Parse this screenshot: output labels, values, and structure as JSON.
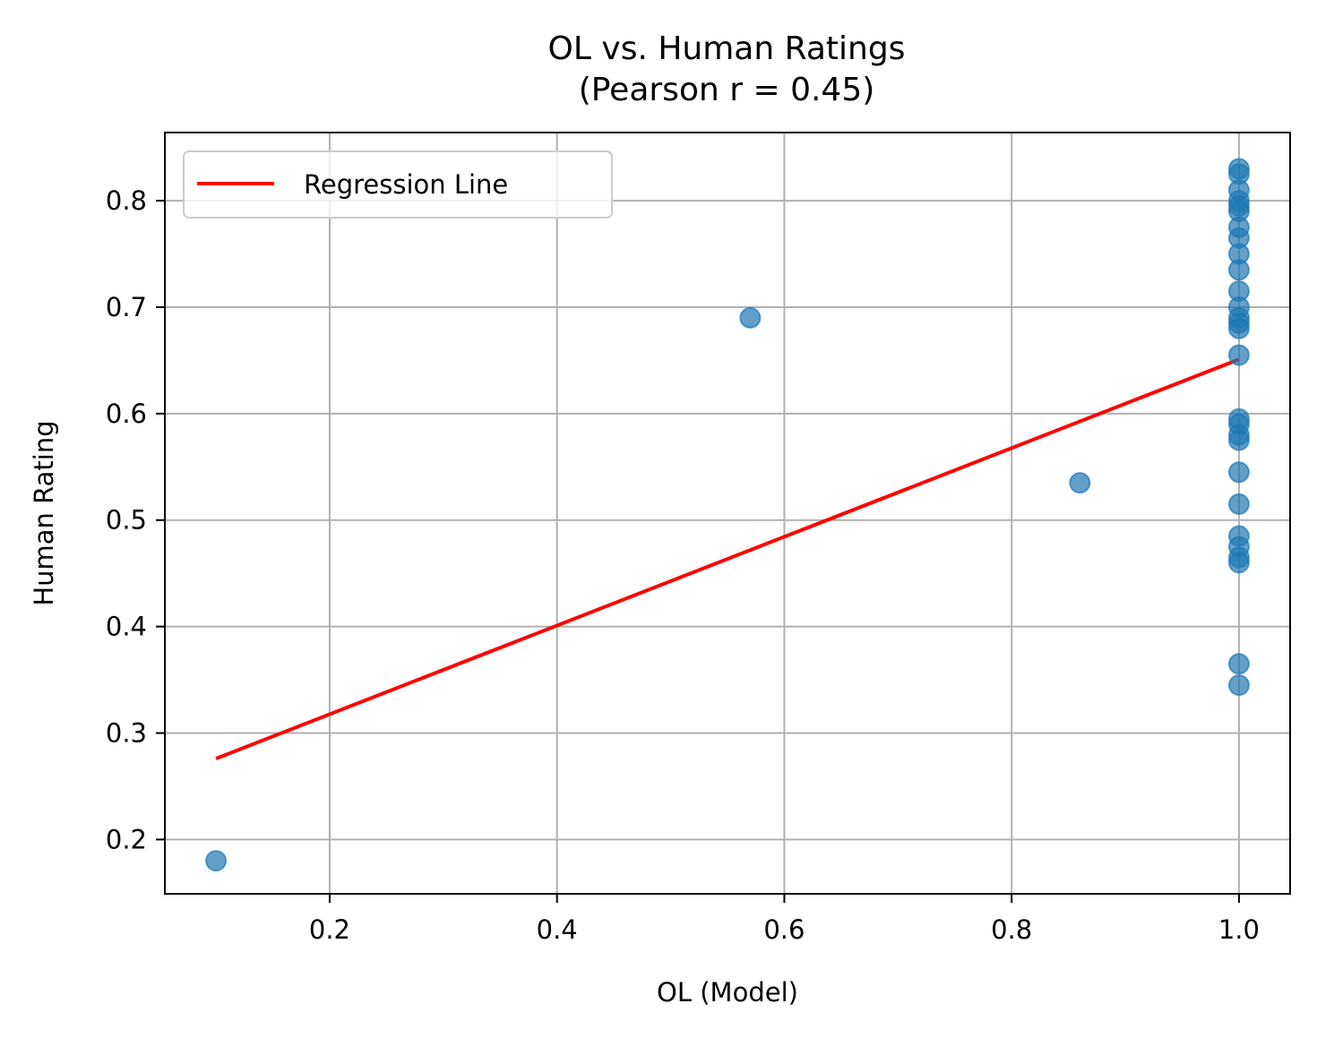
{
  "chart_data": {
    "type": "scatter",
    "title": "OL vs. Human Ratings",
    "subtitle": "(Pearson r = 0.45)",
    "xlabel": "OL (Model)",
    "ylabel": "Human Rating",
    "xlim": [
      0.055,
      1.045
    ],
    "ylim": [
      0.149,
      0.864
    ],
    "xticks": [
      0.2,
      0.4,
      0.6,
      0.8,
      1.0
    ],
    "xtick_labels": [
      "0.2",
      "0.4",
      "0.6",
      "0.8",
      "1.0"
    ],
    "yticks": [
      0.2,
      0.3,
      0.4,
      0.5,
      0.6,
      0.7,
      0.8
    ],
    "ytick_labels": [
      "0.2",
      "0.3",
      "0.4",
      "0.5",
      "0.6",
      "0.7",
      "0.8"
    ],
    "grid": true,
    "legend": {
      "placement": "top-left",
      "entries": [
        "Regression Line"
      ]
    },
    "series": [
      {
        "kind": "scatter",
        "color": "#1f77b4",
        "opacity": 0.7,
        "points": [
          [
            0.1,
            0.18
          ],
          [
            0.57,
            0.69
          ],
          [
            0.86,
            0.535
          ],
          [
            1.0,
            0.83
          ],
          [
            1.0,
            0.825
          ],
          [
            1.0,
            0.81
          ],
          [
            1.0,
            0.8
          ],
          [
            1.0,
            0.795
          ],
          [
            1.0,
            0.79
          ],
          [
            1.0,
            0.775
          ],
          [
            1.0,
            0.765
          ],
          [
            1.0,
            0.75
          ],
          [
            1.0,
            0.735
          ],
          [
            1.0,
            0.715
          ],
          [
            1.0,
            0.7
          ],
          [
            1.0,
            0.69
          ],
          [
            1.0,
            0.685
          ],
          [
            1.0,
            0.68
          ],
          [
            1.0,
            0.655
          ],
          [
            1.0,
            0.595
          ],
          [
            1.0,
            0.59
          ],
          [
            1.0,
            0.58
          ],
          [
            1.0,
            0.575
          ],
          [
            1.0,
            0.545
          ],
          [
            1.0,
            0.515
          ],
          [
            1.0,
            0.485
          ],
          [
            1.0,
            0.475
          ],
          [
            1.0,
            0.465
          ],
          [
            1.0,
            0.46
          ],
          [
            1.0,
            0.365
          ],
          [
            1.0,
            0.345
          ]
        ]
      },
      {
        "kind": "line",
        "name": "Regression Line",
        "color": "#ff0000",
        "points": [
          [
            0.1,
            0.276
          ],
          [
            1.0,
            0.651
          ]
        ]
      }
    ]
  }
}
